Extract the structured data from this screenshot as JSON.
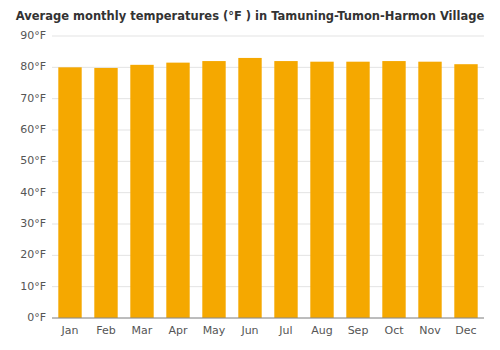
{
  "chart_data": {
    "type": "bar",
    "title": "Average monthly temperatures (°F ) in Tamuning-Tumon-Harmon Village",
    "categories": [
      "Jan",
      "Feb",
      "Mar",
      "Apr",
      "May",
      "Jun",
      "Jul",
      "Aug",
      "Sep",
      "Oct",
      "Nov",
      "Dec"
    ],
    "values": [
      80.0,
      79.8,
      80.8,
      81.5,
      82.0,
      83.0,
      82.0,
      81.8,
      81.8,
      82.0,
      81.8,
      81.0
    ],
    "color": "#F5A800",
    "ylim": [
      0,
      90
    ],
    "yticks": [
      {
        "value": 0,
        "label": "0°F"
      },
      {
        "value": 10,
        "label": "10°F"
      },
      {
        "value": 20,
        "label": "20°F"
      },
      {
        "value": 30,
        "label": "30°F"
      },
      {
        "value": 40,
        "label": "40°F"
      },
      {
        "value": 50,
        "label": "50°F"
      },
      {
        "value": 60,
        "label": "60°F"
      },
      {
        "value": 70,
        "label": "70°F"
      },
      {
        "value": 80,
        "label": "80°F"
      },
      {
        "value": 90,
        "label": "90°F"
      }
    ],
    "grid": true
  }
}
